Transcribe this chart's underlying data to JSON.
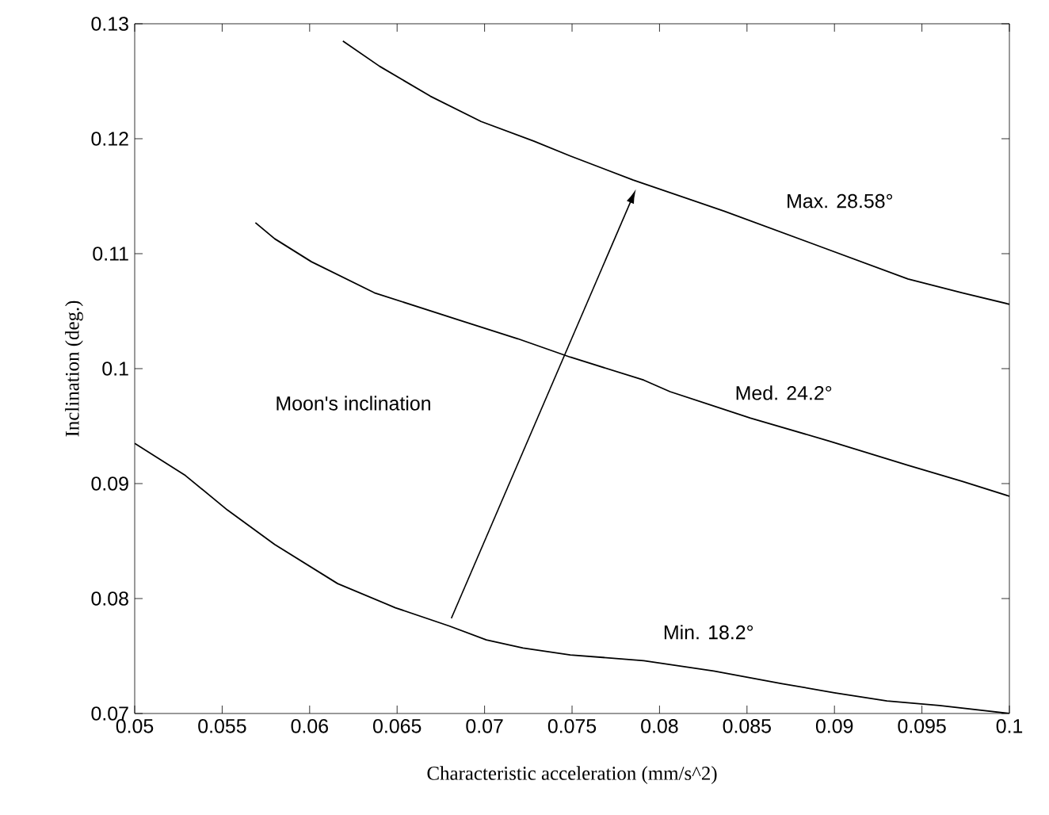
{
  "chart_data": {
    "type": "line",
    "xlabel": "Characteristic acceleration (mm/s^2)",
    "ylabel": "Inclination (deg.)",
    "xlim": [
      0.05,
      0.1
    ],
    "ylim": [
      0.07,
      0.13
    ],
    "xticks": [
      0.05,
      0.055,
      0.06,
      0.065,
      0.07,
      0.075,
      0.08,
      0.085,
      0.09,
      0.095,
      0.1
    ],
    "yticks": [
      0.07,
      0.08,
      0.09,
      0.1,
      0.11,
      0.12,
      0.13
    ],
    "grid": false,
    "legend": false,
    "marker": "none",
    "line_style": "solid",
    "series": [
      {
        "color": "#000000",
        "x": [
          0.0619,
          0.064,
          0.0669,
          0.0698,
          0.0728,
          0.0749,
          0.0785,
          0.0837,
          0.0894,
          0.0942,
          0.0973,
          0.1
        ],
        "values": [
          0.1285,
          0.1263,
          0.1237,
          0.1215,
          0.1198,
          0.1185,
          0.1164,
          0.1137,
          0.1105,
          0.1078,
          0.1066,
          0.1056
        ]
      },
      {
        "color": "#000000",
        "x": [
          0.0569,
          0.058,
          0.0601,
          0.0637,
          0.0686,
          0.0719,
          0.0749,
          0.0791,
          0.0806,
          0.0852,
          0.0897,
          0.0942,
          0.0973,
          0.1
        ],
        "values": [
          0.1127,
          0.1113,
          0.1093,
          0.1066,
          0.1042,
          0.1026,
          0.101,
          0.099,
          0.098,
          0.0957,
          0.0937,
          0.0916,
          0.0902,
          0.0889
        ]
      },
      {
        "color": "#000000",
        "x": [
          0.05,
          0.0529,
          0.0553,
          0.058,
          0.0616,
          0.0649,
          0.068,
          0.0701,
          0.0722,
          0.0749,
          0.0791,
          0.0831,
          0.087,
          0.09,
          0.093,
          0.096,
          0.1
        ],
        "values": [
          0.0935,
          0.0907,
          0.0877,
          0.0847,
          0.0813,
          0.0792,
          0.0776,
          0.0764,
          0.0757,
          0.0751,
          0.0746,
          0.0737,
          0.0726,
          0.0718,
          0.0711,
          0.0707,
          0.07
        ]
      }
    ],
    "annotations": [
      "Max. 28.58°",
      "Med. 24.2°",
      "Min. 18.2°",
      "Moon's inclination"
    ]
  }
}
